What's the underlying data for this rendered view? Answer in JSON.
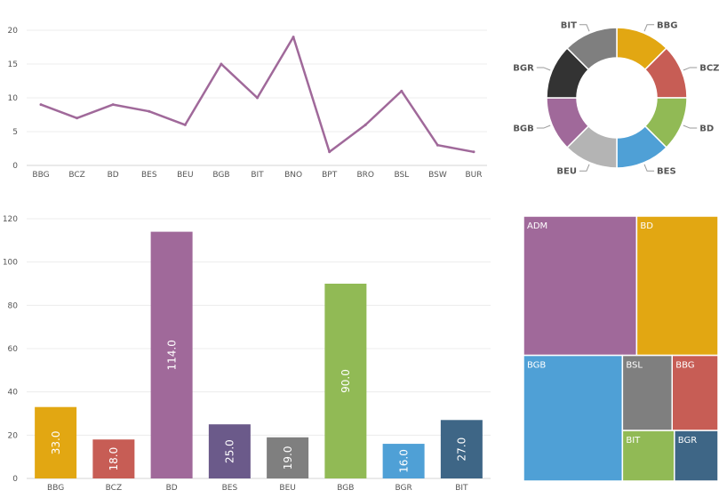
{
  "chart_data": [
    {
      "type": "line",
      "categories": [
        "BBG",
        "BCZ",
        "BD",
        "BES",
        "BEU",
        "BGB",
        "BIT",
        "BNO",
        "BPT",
        "BRO",
        "BSL",
        "BSW",
        "BUR"
      ],
      "values": [
        9,
        7,
        9,
        8,
        6,
        15,
        10,
        19,
        2,
        6,
        11,
        3,
        2
      ],
      "ylim": [
        0,
        20
      ],
      "yticks": [
        0,
        5,
        10,
        15,
        20
      ],
      "grid": true,
      "color": "#a0699a"
    },
    {
      "type": "pie",
      "donut": true,
      "labels": [
        "BBG",
        "BCZ",
        "BD",
        "BES",
        "BEU",
        "BGB",
        "BGR",
        "BIT"
      ],
      "values": [
        1,
        1,
        1,
        1,
        1,
        1,
        1,
        1
      ],
      "colors": [
        "#e2a712",
        "#c75d55",
        "#91ba55",
        "#4fa0d6",
        "#b4b4b4",
        "#a0699a",
        "#333333",
        "#7f7f7f"
      ]
    },
    {
      "type": "bar",
      "categories": [
        "BBG",
        "BCZ",
        "BD",
        "BES",
        "BEU",
        "BGB",
        "BGR",
        "BIT"
      ],
      "values": [
        33.0,
        18.0,
        114.0,
        25.0,
        19.0,
        90.0,
        16.0,
        27.0
      ],
      "data_labels": [
        "33.0",
        "18.0",
        "114.0",
        "25.0",
        "19.0",
        "90.0",
        "16.0",
        "27.0"
      ],
      "ylim": [
        0,
        120
      ],
      "yticks": [
        0,
        20,
        40,
        60,
        80,
        100,
        120
      ],
      "grid": true,
      "colors": [
        "#e2a712",
        "#c75d55",
        "#a0699a",
        "#6b5a8a",
        "#7f7f7f",
        "#91ba55",
        "#4fa0d6",
        "#3e6686"
      ]
    },
    {
      "type": "treemap",
      "labels": [
        "ADM",
        "BD",
        "BGB",
        "BSL",
        "BBG",
        "BIT",
        "BGR"
      ],
      "values": [
        114,
        82,
        90,
        27,
        25,
        19,
        16
      ],
      "colors": [
        "#a0699a",
        "#e2a712",
        "#4fa0d6",
        "#7f7f7f",
        "#c75d55",
        "#91ba55",
        "#3e6686"
      ]
    }
  ]
}
